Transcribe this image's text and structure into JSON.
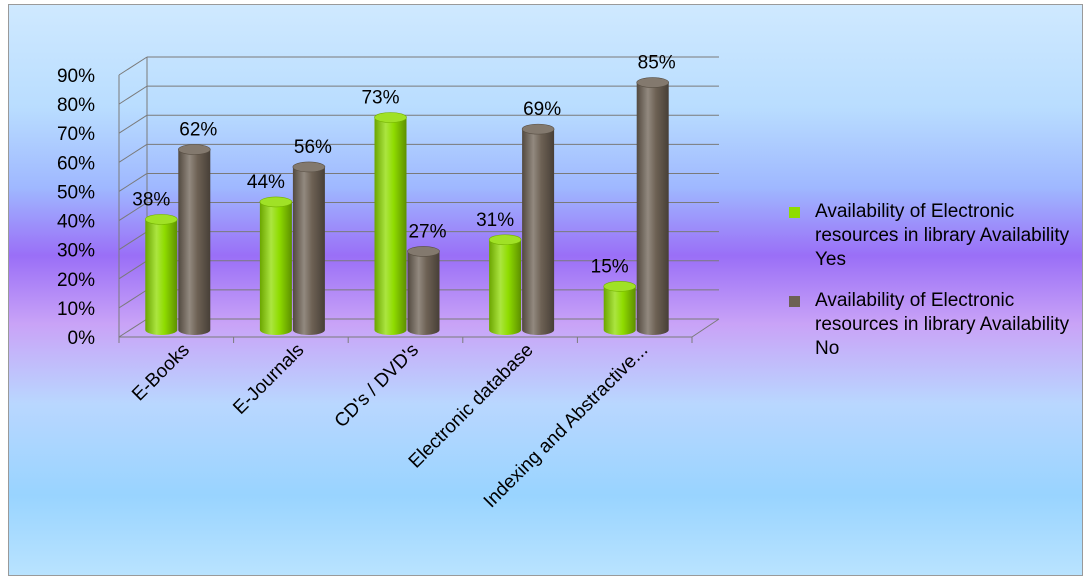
{
  "chart_data": {
    "type": "bar",
    "categories": [
      "E-Books",
      "E-Journals",
      "CD's / DVD's",
      "Electronic database",
      "Indexing and Abstractive..."
    ],
    "series": [
      {
        "name": "Availability of Electronic resources in library Availability  Yes",
        "values": [
          38,
          44,
          73,
          31,
          15
        ],
        "color": "#8fdc00"
      },
      {
        "name": "Availability of Electronic resources in library Availability  No",
        "values": [
          62,
          56,
          27,
          69,
          85
        ],
        "color": "#6d6154"
      }
    ],
    "data_labels": [
      [
        "38%",
        "44%",
        "73%",
        "31%",
        "15%"
      ],
      [
        "62%",
        "56%",
        "27%",
        "69%",
        "85%"
      ]
    ],
    "y_ticks": [
      "0%",
      "10%",
      "20%",
      "30%",
      "40%",
      "50%",
      "60%",
      "70%",
      "80%",
      "90%"
    ],
    "ylim": [
      0,
      90
    ],
    "grid": true,
    "legend_position": "right",
    "three_d": true
  }
}
